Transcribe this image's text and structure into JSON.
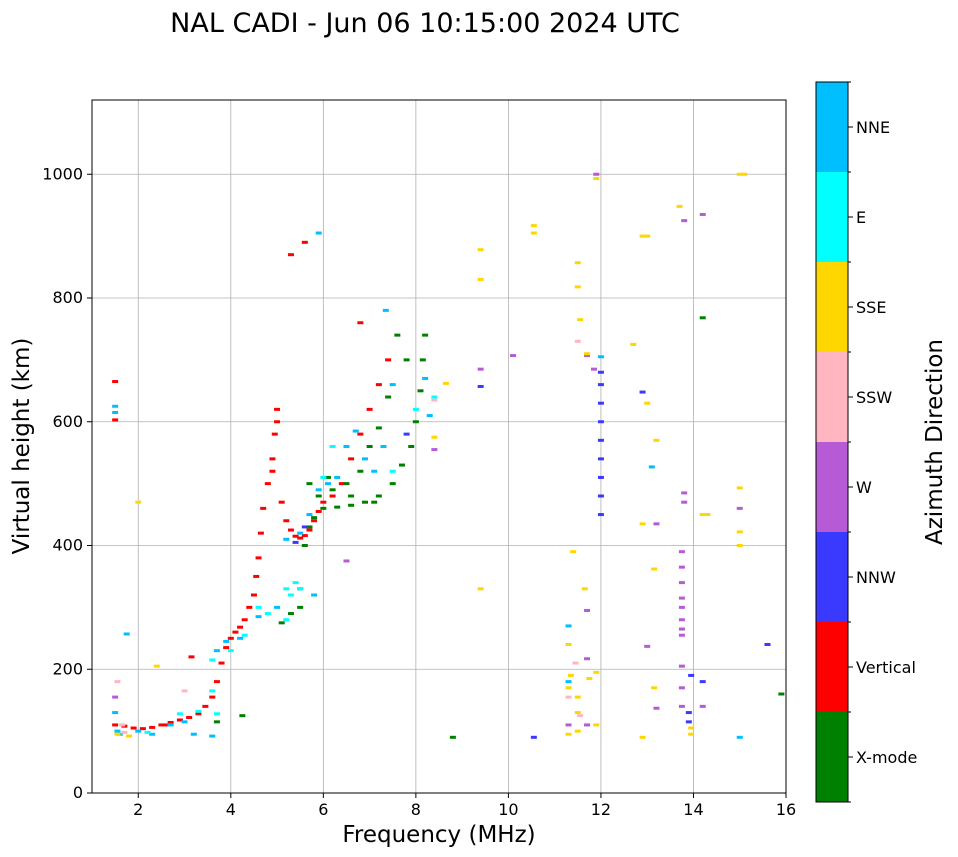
{
  "chart_data": {
    "type": "scatter",
    "title": "NAL CADI - Jun 06 10:15:00 2024 UTC",
    "xlabel": "Frequency (MHz)",
    "ylabel": "Virtual height (km)",
    "xlim": [
      1,
      16
    ],
    "ylim": [
      0,
      1120
    ],
    "xticks": [
      2,
      4,
      6,
      8,
      10,
      12,
      14,
      16
    ],
    "yticks": [
      0,
      200,
      400,
      600,
      800,
      1000
    ],
    "grid": true,
    "colorbar": {
      "title": "Azimuth Direction",
      "position": "right",
      "categories": [
        {
          "name": "X-mode",
          "color": "#008000"
        },
        {
          "name": "Vertical",
          "color": "#ff0000"
        },
        {
          "name": "NNW",
          "color": "#3a3aff"
        },
        {
          "name": "W",
          "color": "#b65ad6"
        },
        {
          "name": "SSW",
          "color": "#ffb6c1"
        },
        {
          "name": "SSE",
          "color": "#ffd700"
        },
        {
          "name": "E",
          "color": "#00ffff"
        },
        {
          "name": "NNE",
          "color": "#00bfff"
        }
      ]
    },
    "traces": [
      {
        "direction": "Vertical",
        "points": [
          [
            1.5,
            110
          ],
          [
            1.7,
            108
          ],
          [
            1.9,
            105
          ],
          [
            2.1,
            104
          ],
          [
            2.3,
            106
          ],
          [
            2.5,
            110
          ],
          [
            2.7,
            114
          ],
          [
            2.9,
            118
          ],
          [
            3.1,
            122
          ],
          [
            3.3,
            128
          ],
          [
            3.45,
            140
          ],
          [
            3.6,
            155
          ],
          [
            3.7,
            180
          ],
          [
            3.8,
            210
          ],
          [
            3.9,
            235
          ],
          [
            4.0,
            250
          ],
          [
            4.1,
            260
          ],
          [
            4.2,
            268
          ],
          [
            4.3,
            280
          ],
          [
            4.4,
            300
          ],
          [
            4.5,
            320
          ],
          [
            4.55,
            350
          ],
          [
            4.6,
            380
          ],
          [
            4.65,
            420
          ],
          [
            4.7,
            460
          ],
          [
            4.8,
            500
          ],
          [
            4.9,
            540
          ],
          [
            5.0,
            600
          ],
          [
            5.0,
            620
          ],
          [
            4.95,
            580
          ],
          [
            4.9,
            520
          ],
          [
            5.1,
            470
          ],
          [
            5.2,
            440
          ],
          [
            5.3,
            425
          ],
          [
            5.4,
            415
          ],
          [
            5.5,
            412
          ],
          [
            5.6,
            416
          ],
          [
            5.7,
            425
          ],
          [
            5.8,
            440
          ],
          [
            5.9,
            455
          ],
          [
            6.0,
            470
          ],
          [
            6.2,
            480
          ],
          [
            6.4,
            500
          ],
          [
            6.6,
            540
          ],
          [
            6.8,
            580
          ],
          [
            7.0,
            620
          ],
          [
            7.2,
            660
          ],
          [
            7.4,
            700
          ],
          [
            6.8,
            760
          ],
          [
            1.5,
            665
          ],
          [
            1.5,
            603
          ],
          [
            2.6,
            110
          ],
          [
            3.15,
            220
          ],
          [
            5.3,
            870
          ],
          [
            5.6,
            890
          ]
        ]
      },
      {
        "direction": "X-mode",
        "points": [
          [
            5.1,
            275
          ],
          [
            5.3,
            290
          ],
          [
            5.5,
            330
          ],
          [
            5.6,
            400
          ],
          [
            5.7,
            430
          ],
          [
            5.8,
            445
          ],
          [
            6.0,
            460
          ],
          [
            6.3,
            462
          ],
          [
            6.6,
            465
          ],
          [
            6.9,
            470
          ],
          [
            7.2,
            480
          ],
          [
            7.5,
            500
          ],
          [
            7.7,
            530
          ],
          [
            7.9,
            560
          ],
          [
            8.0,
            600
          ],
          [
            8.1,
            650
          ],
          [
            8.15,
            700
          ],
          [
            8.2,
            740
          ],
          [
            7.6,
            740
          ],
          [
            7.8,
            700
          ],
          [
            7.4,
            640
          ],
          [
            7.2,
            590
          ],
          [
            7.0,
            560
          ],
          [
            6.8,
            520
          ],
          [
            6.5,
            500
          ],
          [
            6.2,
            490
          ],
          [
            5.9,
            480
          ],
          [
            5.7,
            500
          ],
          [
            6.1,
            510
          ],
          [
            6.6,
            480
          ],
          [
            7.1,
            470
          ],
          [
            3.7,
            115
          ],
          [
            4.25,
            125
          ],
          [
            8.8,
            90
          ],
          [
            14.2,
            768
          ],
          [
            15.9,
            160
          ],
          [
            5.5,
            300
          ]
        ]
      },
      {
        "direction": "NNE",
        "points": [
          [
            1.5,
            625
          ],
          [
            1.5,
            615
          ],
          [
            1.5,
            130
          ],
          [
            1.55,
            100
          ],
          [
            1.6,
            95
          ],
          [
            2.0,
            100
          ],
          [
            2.3,
            95
          ],
          [
            2.7,
            110
          ],
          [
            3.0,
            115
          ],
          [
            3.2,
            95
          ],
          [
            3.6,
            92
          ],
          [
            3.7,
            230
          ],
          [
            3.9,
            245
          ],
          [
            4.2,
            250
          ],
          [
            4.6,
            285
          ],
          [
            5.0,
            300
          ],
          [
            5.2,
            410
          ],
          [
            5.5,
            420
          ],
          [
            5.7,
            450
          ],
          [
            5.9,
            490
          ],
          [
            6.1,
            500
          ],
          [
            6.3,
            510
          ],
          [
            6.5,
            560
          ],
          [
            6.7,
            585
          ],
          [
            6.9,
            540
          ],
          [
            7.1,
            520
          ],
          [
            7.3,
            560
          ],
          [
            7.35,
            780
          ],
          [
            7.5,
            660
          ],
          [
            8.2,
            670
          ],
          [
            8.3,
            610
          ],
          [
            5.9,
            905
          ],
          [
            5.8,
            320
          ],
          [
            11.3,
            180
          ],
          [
            11.3,
            270
          ],
          [
            12.0,
            705
          ],
          [
            13.1,
            527
          ],
          [
            15.6,
            240
          ],
          [
            15.0,
            90
          ],
          [
            1.75,
            257
          ]
        ]
      },
      {
        "direction": "NNW",
        "points": [
          [
            12.0,
            450
          ],
          [
            12.0,
            480
          ],
          [
            12.0,
            510
          ],
          [
            12.0,
            540
          ],
          [
            12.0,
            570
          ],
          [
            12.0,
            600
          ],
          [
            12.0,
            630
          ],
          [
            12.0,
            660
          ],
          [
            12.0,
            680
          ],
          [
            13.9,
            130
          ],
          [
            13.9,
            115
          ],
          [
            13.95,
            190
          ],
          [
            14.2,
            180
          ],
          [
            15.6,
            240
          ],
          [
            10.55,
            90
          ],
          [
            12.9,
            648
          ],
          [
            7.8,
            580
          ],
          [
            5.6,
            430
          ],
          [
            5.4,
            405
          ],
          [
            9.4,
            657
          ]
        ]
      },
      {
        "direction": "W",
        "points": [
          [
            11.9,
            1000
          ],
          [
            14.2,
            935
          ],
          [
            13.8,
            925
          ],
          [
            13.8,
            485
          ],
          [
            13.8,
            470
          ],
          [
            13.2,
            435
          ],
          [
            15.0,
            460
          ],
          [
            13.75,
            390
          ],
          [
            13.75,
            365
          ],
          [
            13.75,
            340
          ],
          [
            13.75,
            315
          ],
          [
            13.75,
            300
          ],
          [
            13.75,
            280
          ],
          [
            13.75,
            265
          ],
          [
            13.75,
            255
          ],
          [
            13.75,
            205
          ],
          [
            13.75,
            170
          ],
          [
            13.75,
            140
          ],
          [
            14.2,
            140
          ],
          [
            13.0,
            237
          ],
          [
            13.2,
            137
          ],
          [
            11.7,
            295
          ],
          [
            11.7,
            217
          ],
          [
            11.3,
            110
          ],
          [
            11.7,
            110
          ],
          [
            6.5,
            375
          ],
          [
            10.1,
            707
          ],
          [
            11.85,
            685
          ],
          [
            11.7,
            707
          ],
          [
            9.4,
            685
          ],
          [
            8.4,
            555
          ],
          [
            1.5,
            155
          ]
        ]
      },
      {
        "direction": "SSE",
        "points": [
          [
            9.4,
            878
          ],
          [
            9.4,
            830
          ],
          [
            10.55,
            917
          ],
          [
            10.55,
            905
          ],
          [
            11.5,
            857
          ],
          [
            11.5,
            818
          ],
          [
            11.55,
            765
          ],
          [
            11.7,
            710
          ],
          [
            11.9,
            993
          ],
          [
            12.9,
            900
          ],
          [
            13.0,
            900
          ],
          [
            12.7,
            725
          ],
          [
            13.0,
            630
          ],
          [
            13.2,
            570
          ],
          [
            13.15,
            362
          ],
          [
            13.15,
            170
          ],
          [
            12.9,
            90
          ],
          [
            13.7,
            948
          ],
          [
            14.2,
            450
          ],
          [
            15.0,
            1000
          ],
          [
            15.1,
            1000
          ],
          [
            15.0,
            493
          ],
          [
            15.0,
            422
          ],
          [
            15.0,
            400
          ],
          [
            11.4,
            390
          ],
          [
            11.65,
            330
          ],
          [
            11.3,
            240
          ],
          [
            11.35,
            190
          ],
          [
            11.3,
            170
          ],
          [
            11.5,
            155
          ],
          [
            11.5,
            130
          ],
          [
            11.3,
            95
          ],
          [
            11.5,
            100
          ],
          [
            11.9,
            195
          ],
          [
            11.75,
            185
          ],
          [
            11.9,
            110
          ],
          [
            14.3,
            450
          ],
          [
            12.9,
            435
          ],
          [
            13.95,
            95
          ],
          [
            13.95,
            105
          ],
          [
            9.4,
            330
          ],
          [
            8.65,
            662
          ],
          [
            8.4,
            575
          ],
          [
            1.55,
            95
          ],
          [
            1.8,
            92
          ],
          [
            2.0,
            470
          ],
          [
            2.4,
            205
          ]
        ]
      },
      {
        "direction": "SSW",
        "points": [
          [
            1.55,
            180
          ],
          [
            1.65,
            110
          ],
          [
            3.0,
            165
          ],
          [
            8.4,
            635
          ],
          [
            11.3,
            155
          ],
          [
            11.55,
            125
          ],
          [
            11.45,
            210
          ],
          [
            11.5,
            730
          ],
          [
            1.7,
            98
          ]
        ]
      },
      {
        "direction": "E",
        "points": [
          [
            3.6,
            215
          ],
          [
            4.3,
            255
          ],
          [
            4.8,
            290
          ],
          [
            5.2,
            330
          ],
          [
            5.4,
            340
          ],
          [
            5.3,
            320
          ],
          [
            5.5,
            330
          ],
          [
            6.2,
            560
          ],
          [
            6.0,
            510
          ],
          [
            5.2,
            280
          ],
          [
            3.6,
            165
          ],
          [
            3.7,
            128
          ],
          [
            2.2,
            98
          ],
          [
            2.9,
            128
          ],
          [
            3.3,
            132
          ],
          [
            4.0,
            230
          ],
          [
            4.6,
            300
          ],
          [
            7.5,
            520
          ],
          [
            8.0,
            620
          ],
          [
            8.4,
            640
          ]
        ]
      }
    ]
  }
}
